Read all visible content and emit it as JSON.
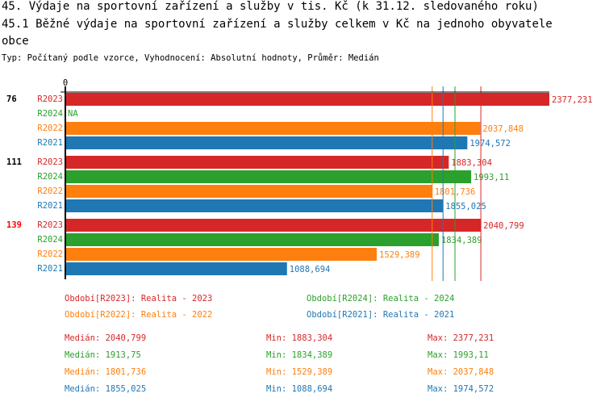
{
  "title1": "45. Výdaje na sportovní zařízení a služby v tis. Kč (k 31.12. sledovaného roku)",
  "title2": "45.1 Běžné výdaje na sportovní zařízení a služby celkem v Kč na jednoho obyvatele",
  "title3": " obce",
  "subtitle": "Typ: Počítaný podle vzorce, Vyhodnocení: Absolutní hodnoty, Průměr: Medián",
  "colors": {
    "R2023": "#d62728",
    "R2024": "#2ca02c",
    "R2022": "#ff7f0e",
    "R2021": "#1f77b4"
  },
  "chart_data": {
    "type": "bar",
    "orientation": "horizontal",
    "x_tick": "0",
    "xlim": [
      0,
      2377.231
    ],
    "groups": [
      {
        "label": "76",
        "label_color": "#000000",
        "rows": [
          {
            "series": "R2023",
            "value": 2377.231,
            "text": "2377,231"
          },
          {
            "series": "R2024",
            "value": null,
            "text": "NA"
          },
          {
            "series": "R2022",
            "value": 2037.848,
            "text": "2037,848"
          },
          {
            "series": "R2021",
            "value": 1974.572,
            "text": "1974,572"
          }
        ]
      },
      {
        "label": "111",
        "label_color": "#000000",
        "rows": [
          {
            "series": "R2023",
            "value": 1883.304,
            "text": "1883,304"
          },
          {
            "series": "R2024",
            "value": 1993.11,
            "text": "1993,11"
          },
          {
            "series": "R2022",
            "value": 1801.736,
            "text": "1801,736"
          },
          {
            "series": "R2021",
            "value": 1855.025,
            "text": "1855,025"
          }
        ]
      },
      {
        "label": "139",
        "label_color": "#ff0000",
        "rows": [
          {
            "series": "R2023",
            "value": 2040.799,
            "text": "2040,799"
          },
          {
            "series": "R2024",
            "value": 1834.389,
            "text": "1834,389"
          },
          {
            "series": "R2022",
            "value": 1529.389,
            "text": "1529,389"
          },
          {
            "series": "R2021",
            "value": 1088.694,
            "text": "1088,694"
          }
        ]
      }
    ],
    "median_lines": [
      {
        "series": "R2022",
        "value": 1801.736
      },
      {
        "series": "R2021",
        "value": 1855.025
      },
      {
        "series": "R2024",
        "value": 1913.75
      },
      {
        "series": "R2023",
        "value": 2040.799
      }
    ]
  },
  "legend": [
    {
      "series": "R2023",
      "text": "Období[R2023]: Realita - 2023"
    },
    {
      "series": "R2024",
      "text": "Období[R2024]: Realita - 2024"
    },
    {
      "series": "R2022",
      "text": "Období[R2022]: Realita - 2022"
    },
    {
      "series": "R2021",
      "text": "Období[R2021]: Realita - 2021"
    }
  ],
  "stats": [
    {
      "series": "R2023",
      "median": "Medián: 2040,799",
      "min": "Min: 1883,304",
      "max": "Max: 2377,231"
    },
    {
      "series": "R2024",
      "median": "Medián: 1913,75",
      "min": "Min: 1834,389",
      "max": "Max: 1993,11"
    },
    {
      "series": "R2022",
      "median": "Medián: 1801,736",
      "min": "Min: 1529,389",
      "max": "Max: 2037,848"
    },
    {
      "series": "R2021",
      "median": "Medián: 1855,025",
      "min": "Min: 1088,694",
      "max": "Max: 1974,572"
    }
  ]
}
